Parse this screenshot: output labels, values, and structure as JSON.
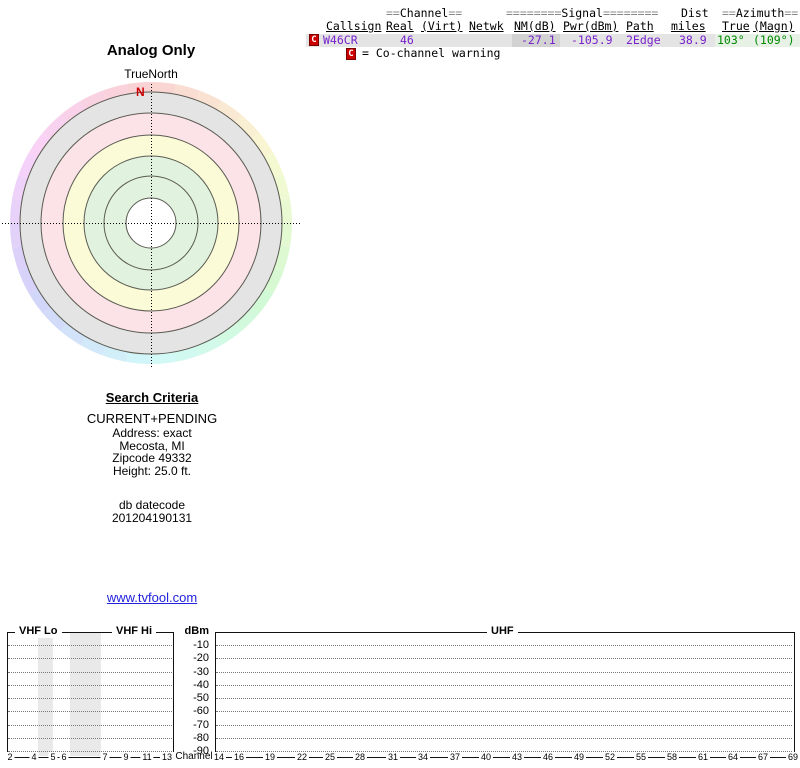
{
  "report": {
    "table": {
      "group_headers": [
        {
          "pre": "==",
          "label": "Channel",
          "post": "=="
        },
        {
          "pre": "========",
          "label": "Signal",
          "post": "========"
        },
        {
          "pre": "",
          "label": "Dist",
          "post": ""
        },
        {
          "pre": "==",
          "label": "Azimuth",
          "post": "=="
        }
      ],
      "col_headers": {
        "callsign": "Callsign",
        "real": "Real",
        "virt": "(Virt)",
        "netwk": "Netwk",
        "nm_db": "NM(dB)",
        "pwr_dbm": "Pwr(dBm)",
        "path": "Path",
        "miles": "miles",
        "true_az": "True",
        "magn_az": "(Magn)"
      },
      "row": {
        "flag": "C",
        "callsign": "W46CR",
        "real_ch": "46",
        "nm_db": "-27.1",
        "pwr_dbm": "-105.9",
        "path": "2Edge",
        "miles": "38.9",
        "azimuth_true": "103°",
        "azimuth_magn": "(109°)"
      },
      "legend": {
        "flag": "C",
        "text": "= Co-channel warning"
      }
    },
    "radar": {
      "title": "Analog Only",
      "subtitle": "TrueNorth",
      "north_label": "N"
    },
    "search_criteria": {
      "heading": "Search Criteria",
      "lines": [
        "CURRENT+PENDING",
        "Address: exact",
        "Mecosta, MI",
        "Zipcode 49332",
        "Height: 25.0 ft."
      ],
      "db_lines": [
        "db datecode",
        "201204190131"
      ]
    },
    "link_text": "www.tvfool.com"
  },
  "chart_data": [
    {
      "type": "radar-coverage",
      "title": "Analog Only",
      "orientation_label": "TrueNorth",
      "north_marker": "N",
      "outer_band": {
        "style": "pastel hue wheel, hue equals compass bearing",
        "saturation_pct": 75,
        "lightness_pct": 90
      },
      "rings": [
        {
          "radius_px": 131,
          "color": "#e4e4e4",
          "zone": "gray"
        },
        {
          "radius_px": 110,
          "color": "#fbe3e7",
          "zone": "pink"
        },
        {
          "radius_px": 88,
          "color": "#fbfbd8",
          "zone": "yellow"
        },
        {
          "radius_px": 67,
          "color": "#e1f3df",
          "zone": "green"
        },
        {
          "radius_px": 47,
          "color": "#e1f3df",
          "zone": "green"
        },
        {
          "radius_px": 25,
          "color": "#ffffff",
          "zone": "center"
        }
      ],
      "stations": [
        {
          "callsign": "W46CR",
          "channel_real": 46,
          "nm_db": -27.1,
          "pwr_dbm": -105.9,
          "path": "2Edge",
          "distance_miles": 38.9,
          "azimuth_true_deg": 103,
          "azimuth_magn_deg": 109,
          "warning": "Co-channel"
        }
      ]
    },
    {
      "type": "spectrum",
      "band_labels": [
        "VHF Lo",
        "VHF Hi",
        "UHF"
      ],
      "ylabel": "dBm",
      "y_ticks": [
        "-10",
        "-20",
        "-30",
        "-40",
        "-50",
        "-60",
        "-70",
        "-80",
        "-90"
      ],
      "ylim": [
        -95,
        -5
      ],
      "xlabel": "Channel",
      "vhf_channel_ticks": [
        "2",
        "4",
        "5",
        "6",
        "7",
        "9",
        "11",
        "13"
      ],
      "uhf_channel_ticks": [
        "14",
        "16",
        "19",
        "22",
        "25",
        "28",
        "31",
        "34",
        "37",
        "40",
        "43",
        "46",
        "49",
        "52",
        "55",
        "58",
        "61",
        "64",
        "67",
        "69"
      ],
      "shaded_gaps": [
        "between ch4 and ch5",
        "FM band between ch6 and ch7"
      ],
      "values": [],
      "grid": "dotted horizontal lines every 10 dB"
    }
  ]
}
